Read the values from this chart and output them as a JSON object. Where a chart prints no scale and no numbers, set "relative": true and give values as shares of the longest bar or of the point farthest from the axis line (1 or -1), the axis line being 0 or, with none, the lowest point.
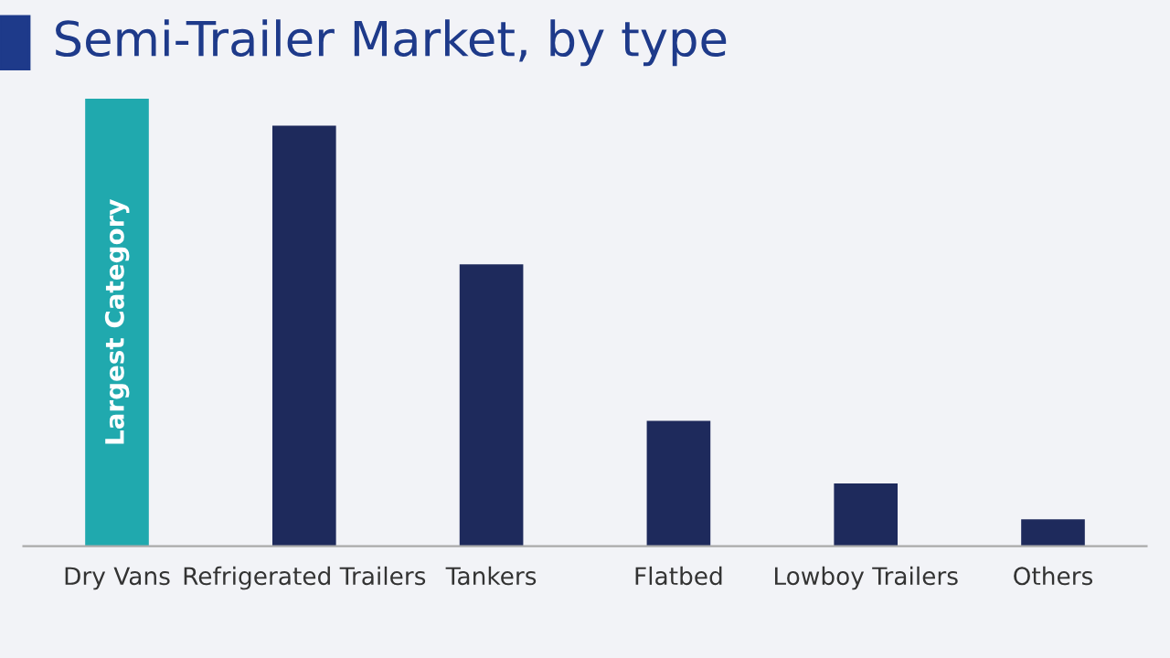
{
  "chart_data": {
    "type": "bar",
    "title": "Semi-Trailer Market, by type",
    "categories": [
      "Dry Vans",
      "Refrigerated Trailers",
      "Tankers",
      "Flatbed",
      "Lowboy Trailers",
      "Others"
    ],
    "values": [
      1,
      0.94,
      0.63,
      0.28,
      0.14,
      0.06
    ],
    "colors": [
      "#20a9ae",
      "#1e2a5c",
      "#1e2a5c",
      "#1e2a5c",
      "#1e2a5c",
      "#1e2a5c"
    ],
    "relative": true,
    "grid": false,
    "legend": false,
    "annotations": [
      "Largest Category"
    ]
  }
}
